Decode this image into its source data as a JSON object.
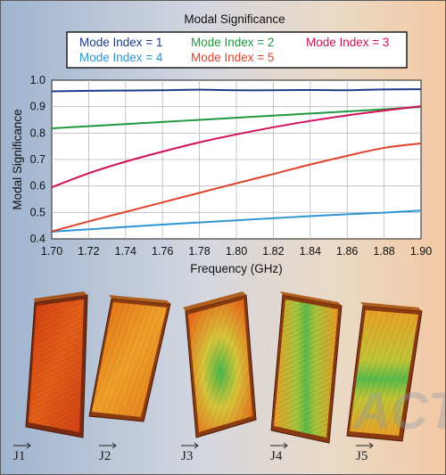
{
  "chart_data": {
    "type": "line",
    "title": "Modal Significance",
    "xlabel": "Frequency (GHz)",
    "ylabel": "Modal Significance",
    "xlim": [
      1.7,
      1.9
    ],
    "ylim": [
      0.4,
      1.0
    ],
    "x_ticks": [
      "1.70",
      "1.72",
      "1.74",
      "1.76",
      "1.78",
      "1.80",
      "1.82",
      "1.84",
      "1.86",
      "1.88",
      "1.90"
    ],
    "y_ticks": [
      "0.4",
      "0.5",
      "0.6",
      "0.7",
      "0.8",
      "0.9",
      "1.0"
    ],
    "grid": true,
    "legend_position": "top",
    "x": [
      1.7,
      1.72,
      1.74,
      1.76,
      1.78,
      1.8,
      1.82,
      1.84,
      1.86,
      1.88,
      1.9
    ],
    "series": [
      {
        "name": "Mode Index = 1",
        "color": "#1a3a8c",
        "values": [
          0.958,
          0.96,
          0.961,
          0.962,
          0.964,
          0.962,
          0.962,
          0.963,
          0.962,
          0.965,
          0.966
        ]
      },
      {
        "name": "Mode Index = 2",
        "color": "#1e9a3c",
        "values": [
          0.818,
          0.826,
          0.834,
          0.842,
          0.85,
          0.858,
          0.866,
          0.874,
          0.882,
          0.89,
          0.899
        ]
      },
      {
        "name": "Mode Index = 3",
        "color": "#d0105a",
        "values": [
          0.595,
          0.648,
          0.692,
          0.73,
          0.765,
          0.795,
          0.822,
          0.846,
          0.867,
          0.885,
          0.902
        ]
      },
      {
        "name": "Mode Index = 4",
        "color": "#2d95d4",
        "values": [
          0.427,
          0.436,
          0.445,
          0.454,
          0.462,
          0.47,
          0.478,
          0.486,
          0.493,
          0.499,
          0.507
        ]
      },
      {
        "name": "Mode Index = 5",
        "color": "#e0402a",
        "values": [
          0.428,
          0.466,
          0.502,
          0.538,
          0.574,
          0.61,
          0.645,
          0.681,
          0.714,
          0.744,
          0.761
        ]
      }
    ]
  },
  "current_labels": [
    "J1",
    "J2",
    "J3",
    "J4",
    "J5"
  ],
  "watermark": "ACT"
}
